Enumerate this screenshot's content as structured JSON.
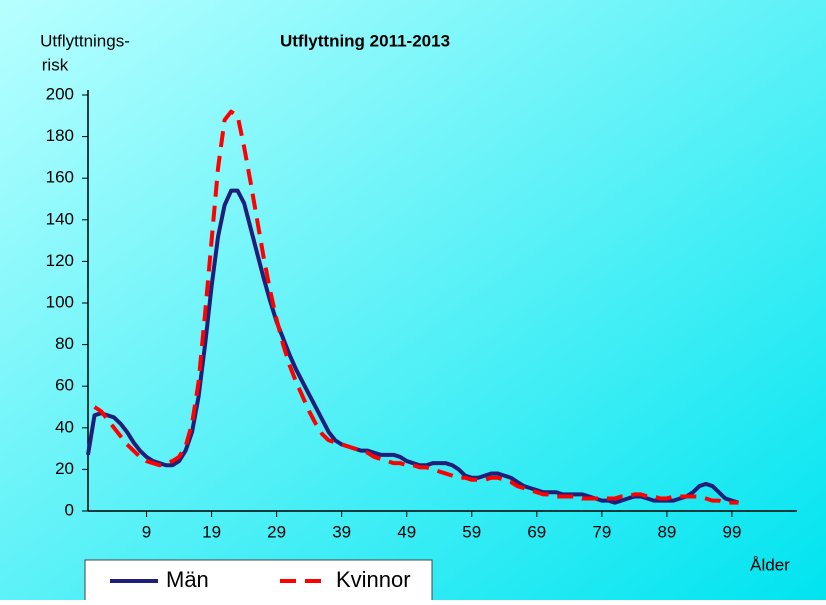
{
  "chart_data": {
    "type": "line",
    "title": "Utflyttning 2011-2013",
    "ylabel": [
      "Utflyttnings-",
      "risk"
    ],
    "xlabel": "Ålder",
    "x": [
      0,
      1,
      2,
      3,
      4,
      5,
      6,
      7,
      8,
      9,
      10,
      11,
      12,
      13,
      14,
      15,
      16,
      17,
      18,
      19,
      20,
      21,
      22,
      23,
      24,
      25,
      26,
      27,
      28,
      29,
      30,
      31,
      32,
      33,
      34,
      35,
      36,
      37,
      38,
      39,
      40,
      41,
      42,
      43,
      44,
      45,
      46,
      47,
      48,
      49,
      50,
      51,
      52,
      53,
      54,
      55,
      56,
      57,
      58,
      59,
      60,
      61,
      62,
      63,
      64,
      65,
      66,
      67,
      68,
      69,
      70,
      71,
      72,
      73,
      74,
      75,
      76,
      77,
      78,
      79,
      80,
      81,
      82,
      83,
      84,
      85,
      86,
      87,
      88,
      89,
      90,
      91,
      92,
      93,
      94,
      95,
      96,
      97,
      98,
      99,
      100
    ],
    "series": [
      {
        "name": "Män",
        "color": "#1f1f7a",
        "dash": false,
        "values": [
          27,
          46,
          47,
          46,
          45,
          42,
          38,
          33,
          29,
          26,
          24,
          23,
          22,
          22,
          24,
          29,
          38,
          55,
          80,
          108,
          132,
          147,
          154,
          154,
          148,
          136,
          124,
          112,
          101,
          91,
          83,
          75,
          68,
          62,
          56,
          50,
          44,
          38,
          34,
          32,
          31,
          30,
          29,
          29,
          28,
          27,
          27,
          27,
          26,
          24,
          23,
          22,
          22,
          23,
          23,
          23,
          22,
          20,
          17,
          16,
          16,
          17,
          18,
          18,
          17,
          16,
          14,
          12,
          11,
          10,
          9,
          9,
          9,
          8,
          8,
          8,
          8,
          7,
          6,
          5,
          5,
          4,
          5,
          6,
          7,
          7,
          6,
          5,
          5,
          5,
          5,
          6,
          7,
          9,
          12,
          13,
          12,
          9,
          6,
          5,
          4
        ]
      },
      {
        "name": "Kvinnor",
        "color": "#ff0000",
        "dash": true,
        "values": [
          null,
          50,
          48,
          44,
          40,
          36,
          32,
          29,
          26,
          24,
          23,
          22,
          23,
          24,
          26,
          31,
          42,
          62,
          95,
          130,
          165,
          188,
          192,
          190,
          175,
          158,
          140,
          122,
          106,
          92,
          80,
          70,
          62,
          55,
          48,
          42,
          37,
          34,
          33,
          32,
          31,
          30,
          29,
          28,
          26,
          25,
          24,
          23,
          23,
          22,
          22,
          21,
          21,
          20,
          19,
          18,
          17,
          16,
          16,
          15,
          15,
          15,
          16,
          16,
          15,
          14,
          12,
          11,
          10,
          9,
          8,
          8,
          7,
          7,
          7,
          7,
          6,
          6,
          6,
          6,
          6,
          6,
          7,
          7,
          8,
          8,
          7,
          7,
          6,
          6,
          7,
          7,
          7,
          7,
          7,
          6,
          5,
          5,
          4,
          4,
          4
        ]
      }
    ],
    "xlim": [
      0,
      109
    ],
    "xticks": [
      9,
      19,
      29,
      39,
      49,
      59,
      69,
      79,
      89,
      99
    ],
    "ylim": [
      0,
      200
    ],
    "yticks": [
      0,
      20,
      40,
      60,
      80,
      100,
      120,
      140,
      160,
      180,
      200
    ]
  }
}
